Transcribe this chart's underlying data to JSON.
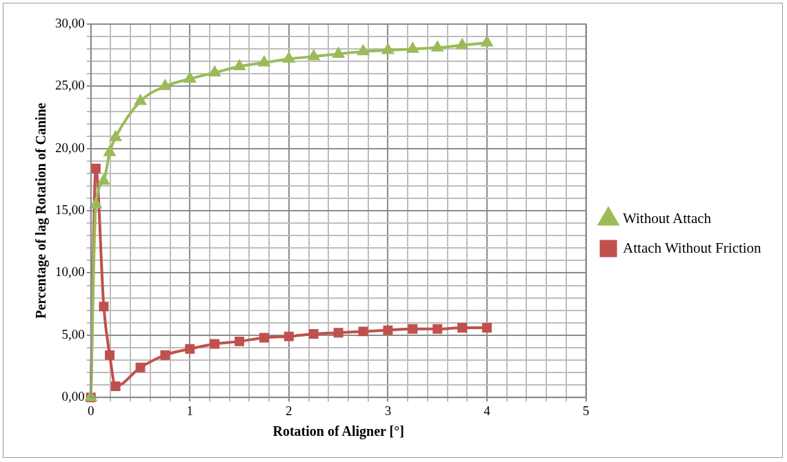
{
  "chart_data": {
    "type": "line",
    "xlabel": "Rotation of Aligner [°]",
    "ylabel": "Percentage of lag Rotation of Canine",
    "series": [
      {
        "name": "Attach Without Friction",
        "color": "#c0504d",
        "marker": "square",
        "x": [
          0,
          0.05,
          0.13,
          0.19,
          0.25,
          0.5,
          0.75,
          1,
          1.25,
          1.5,
          1.75,
          2,
          2.25,
          2.5,
          2.75,
          3,
          3.25,
          3.5,
          3.75,
          4
        ],
        "values": [
          0,
          18.4,
          7.3,
          3.4,
          0.9,
          2.4,
          3.4,
          3.9,
          4.3,
          4.5,
          4.8,
          4.9,
          5.1,
          5.2,
          5.3,
          5.4,
          5.5,
          5.5,
          5.6,
          5.6
        ]
      },
      {
        "name": "Without Attach",
        "color": "#9bbb59",
        "marker": "triangle",
        "x": [
          0,
          0.05,
          0.13,
          0.19,
          0.25,
          0.5,
          0.75,
          1,
          1.25,
          1.5,
          1.75,
          2,
          2.25,
          2.5,
          2.75,
          3,
          3.25,
          3.5,
          3.75,
          4
        ],
        "values": [
          0,
          15.5,
          17.4,
          19.7,
          20.9,
          23.8,
          25.0,
          25.6,
          26.1,
          26.6,
          26.9,
          27.2,
          27.4,
          27.6,
          27.8,
          27.9,
          28.0,
          28.1,
          28.3,
          28.5
        ]
      }
    ],
    "xlim": [
      0,
      5
    ],
    "xticks": [
      0,
      {
        "value": 0.2,
        "label": null
      },
      {
        "value": 0.4,
        "label": null
      },
      {
        "value": 0.6,
        "label": null
      },
      {
        "value": 0.8,
        "label": null
      },
      1,
      {
        "value": 1.2,
        "label": null
      },
      {
        "value": 1.4,
        "label": null
      },
      {
        "value": 1.6,
        "label": null
      },
      {
        "value": 1.8,
        "label": null
      },
      2,
      {
        "value": 2.2,
        "label": null
      },
      {
        "value": 2.4,
        "label": null
      },
      {
        "value": 2.6,
        "label": null
      },
      {
        "value": 2.8,
        "label": null
      },
      3,
      {
        "value": 3.2,
        "label": null
      },
      {
        "value": 3.4,
        "label": null
      },
      {
        "value": 3.6,
        "label": null
      },
      {
        "value": 3.8,
        "label": null
      },
      4,
      {
        "value": 4.2,
        "label": null
      },
      {
        "value": 4.4,
        "label": null
      },
      {
        "value": 4.6,
        "label": null
      },
      {
        "value": 4.8,
        "label": null
      },
      5
    ],
    "ylim": [
      0,
      30
    ],
    "yticks": [
      {
        "value": 0,
        "label": "0,00"
      },
      {
        "value": 1,
        "label": null
      },
      {
        "value": 2,
        "label": null
      },
      {
        "value": 3,
        "label": null
      },
      {
        "value": 4,
        "label": null
      },
      {
        "value": 5,
        "label": "5,00"
      },
      {
        "value": 6,
        "label": null
      },
      {
        "value": 7,
        "label": null
      },
      {
        "value": 8,
        "label": null
      },
      {
        "value": 9,
        "label": null
      },
      {
        "value": 10,
        "label": "10,00"
      },
      {
        "value": 11,
        "label": null
      },
      {
        "value": 12,
        "label": null
      },
      {
        "value": 13,
        "label": null
      },
      {
        "value": 14,
        "label": null
      },
      {
        "value": 15,
        "label": "15,00"
      },
      {
        "value": 16,
        "label": null
      },
      {
        "value": 17,
        "label": null
      },
      {
        "value": 18,
        "label": null
      },
      {
        "value": 19,
        "label": null
      },
      {
        "value": 20,
        "label": "20,00"
      },
      {
        "value": 21,
        "label": null
      },
      {
        "value": 22,
        "label": null
      },
      {
        "value": 23,
        "label": null
      },
      {
        "value": 24,
        "label": null
      },
      {
        "value": 25,
        "label": "25,00"
      },
      {
        "value": 26,
        "label": null
      },
      {
        "value": 27,
        "label": null
      },
      {
        "value": 28,
        "label": null
      },
      {
        "value": 29,
        "label": null
      },
      {
        "value": 30,
        "label": "30,00"
      }
    ],
    "grid": true,
    "legend": "right",
    "line_style": "solid"
  }
}
